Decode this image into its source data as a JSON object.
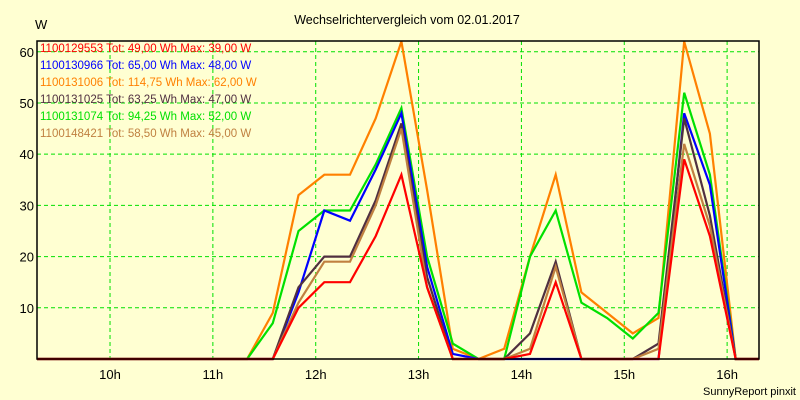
{
  "chart_data": {
    "type": "line",
    "title": "Wechselrichtervergleich vom 02.01.2017",
    "ylabel": "W",
    "xlabel": "",
    "footer": "SunnyReport pinxit",
    "xlim": [
      9.29,
      16.31
    ],
    "ylim": [
      0,
      62.1
    ],
    "grid": true,
    "legend_position": "top-left",
    "y_ticks": [
      10,
      20,
      30,
      40,
      50,
      60
    ],
    "x_ticks": [
      10,
      11,
      12,
      13,
      14,
      15,
      16
    ],
    "x_tick_labels": [
      "10h",
      "11h",
      "12h",
      "13h",
      "14h",
      "15h",
      "16h"
    ],
    "x": [
      9.29,
      11.333,
      11.583,
      11.833,
      12.083,
      12.333,
      12.583,
      12.833,
      13.083,
      13.333,
      13.583,
      13.833,
      14.083,
      14.333,
      14.583,
      14.833,
      15.083,
      15.333,
      15.583,
      15.833,
      16.083,
      16.31
    ],
    "series": [
      {
        "name": "1100129553",
        "label": "1100129553 Tot: 49,00 Wh Max: 39,00 W",
        "color": "#ff0000",
        "values": [
          0,
          0,
          0,
          10,
          15,
          15,
          24,
          36,
          14,
          0,
          0,
          0,
          1,
          15,
          0,
          0,
          0,
          0,
          39,
          24,
          0,
          0
        ]
      },
      {
        "name": "1100130966",
        "label": "1100130966 Tot: 65,00 Wh Max: 48,00 W",
        "color": "#0000ff",
        "values": [
          0,
          0,
          0,
          13,
          29,
          27,
          37,
          48,
          18,
          1,
          0,
          0,
          0,
          0,
          0,
          0,
          0,
          0,
          48,
          34,
          0,
          0
        ]
      },
      {
        "name": "1100131006",
        "label": "1100131006 Tot: 114,75 Wh Max: 62,00 W",
        "color": "#ff8000",
        "values": [
          0,
          0,
          9,
          32,
          36,
          36,
          47,
          62,
          33,
          2,
          0,
          2,
          20,
          36,
          13,
          9,
          5,
          8,
          62,
          44,
          0,
          0
        ]
      },
      {
        "name": "1100131025",
        "label": "1100131025 Tot: 63,25 Wh Max: 47,00 W",
        "color": "#503040",
        "values": [
          0,
          0,
          0,
          14,
          20,
          20,
          31,
          46,
          16,
          0,
          0,
          0,
          5,
          19,
          0,
          0,
          0,
          3,
          47,
          28,
          0,
          0
        ]
      },
      {
        "name": "1100131074",
        "label": "1100131074 Tot: 94,25 Wh Max: 52,00 W",
        "color": "#00e000",
        "values": [
          0,
          0,
          7,
          25,
          29,
          29,
          38,
          49,
          20,
          3,
          0,
          0,
          20,
          29,
          11,
          8,
          4,
          9,
          52,
          36,
          0,
          0
        ]
      },
      {
        "name": "1100148421",
        "label": "1100148421 Tot: 58,50 Wh Max: 45,00 W",
        "color": "#c08040",
        "values": [
          0,
          0,
          0,
          11,
          19,
          19,
          30,
          45,
          14,
          0,
          0,
          0,
          2,
          18,
          0,
          0,
          0,
          2,
          42,
          26,
          0,
          0
        ]
      }
    ]
  }
}
